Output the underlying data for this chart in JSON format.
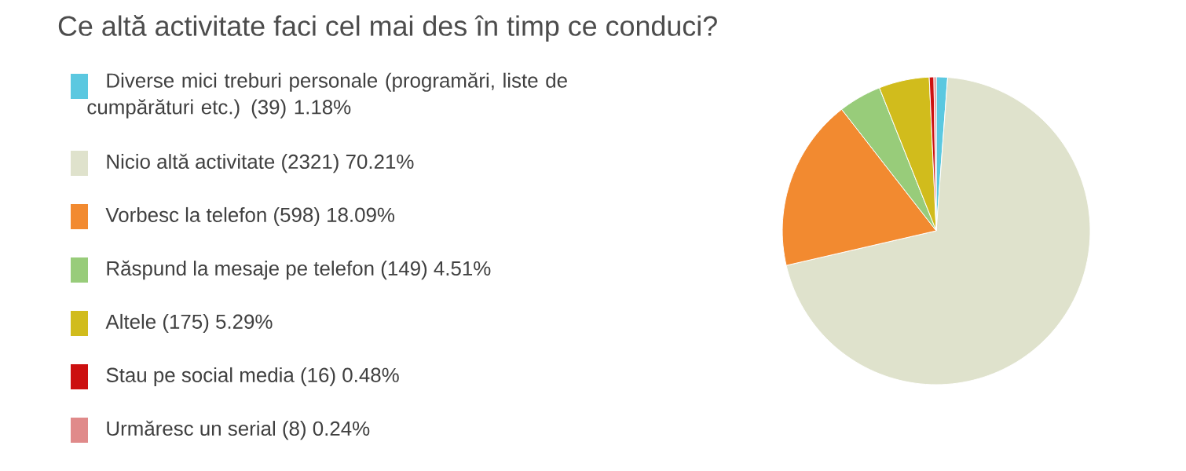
{
  "chart_data": {
    "type": "pie",
    "title": "Ce altă activitate faci cel mai des în timp ce conduci?",
    "categories": [
      "Diverse mici treburi personale (programări, liste de cumpărături etc.) (39) 1.18%",
      "Nicio altă activitate (2321) 70.21%",
      "Vorbesc la telefon (598) 18.09%",
      "Răspund la mesaje pe telefon (149) 4.51%",
      "Altele (175) 5.29%",
      "Stau pe social media (16) 0.48%",
      "Urmăresc un serial (8) 0.24%"
    ],
    "values": [
      39,
      2321,
      598,
      149,
      175,
      16,
      8
    ],
    "colors": [
      "#5bc8e0",
      "#dfe2cc",
      "#f28a30",
      "#98cc7a",
      "#d1bc1c",
      "#cc1010",
      "#e08a8a"
    ],
    "legend": "left"
  }
}
